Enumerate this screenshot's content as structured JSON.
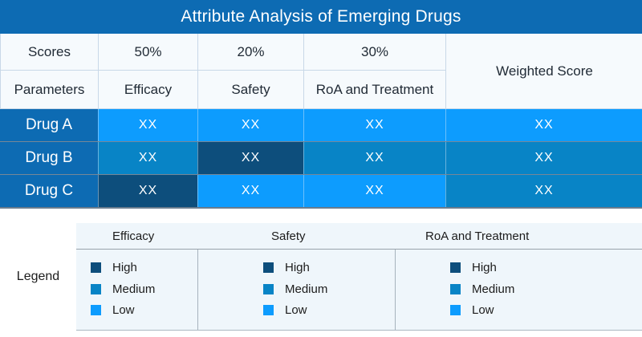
{
  "title": "Attribute Analysis of Emerging Drugs",
  "colors": {
    "brand": "#0D6BB3",
    "high": "#0D4E7C",
    "medium": "#0884C6",
    "low": "#0D9CFE",
    "header_bg": "#F6FAFD",
    "legend_bg": "#EFF6FB",
    "value_text": "#FFFFFF"
  },
  "header": {
    "scores_label": "Scores",
    "parameters_label": "Parameters",
    "weighted_label": "Weighted Score",
    "columns": [
      {
        "weight": "50%",
        "parameter": "Efficacy"
      },
      {
        "weight": "20%",
        "parameter": "Safety"
      },
      {
        "weight": "30%",
        "parameter": "RoA and Treatment"
      }
    ]
  },
  "matrix": {
    "rows": [
      {
        "label": "Drug A",
        "cells": [
          {
            "value": "XX",
            "level": "low"
          },
          {
            "value": "XX",
            "level": "low"
          },
          {
            "value": "XX",
            "level": "low"
          },
          {
            "value": "XX",
            "level": "low"
          }
        ]
      },
      {
        "label": "Drug B",
        "cells": [
          {
            "value": "XX",
            "level": "medium"
          },
          {
            "value": "XX",
            "level": "high"
          },
          {
            "value": "XX",
            "level": "medium"
          },
          {
            "value": "XX",
            "level": "medium"
          }
        ]
      },
      {
        "label": "Drug C",
        "cells": [
          {
            "value": "XX",
            "level": "high"
          },
          {
            "value": "XX",
            "level": "low"
          },
          {
            "value": "XX",
            "level": "low"
          },
          {
            "value": "XX",
            "level": "medium"
          }
        ]
      }
    ]
  },
  "legend": {
    "label": "Legend",
    "groups": [
      {
        "title": "Efficacy",
        "items": [
          {
            "label": "High",
            "level": "high"
          },
          {
            "label": "Medium",
            "level": "medium"
          },
          {
            "label": "Low",
            "level": "low"
          }
        ]
      },
      {
        "title": "Safety",
        "items": [
          {
            "label": "High",
            "level": "high"
          },
          {
            "label": "Medium",
            "level": "medium"
          },
          {
            "label": "Low",
            "level": "low"
          }
        ]
      },
      {
        "title": "RoA and Treatment",
        "items": [
          {
            "label": "High",
            "level": "high"
          },
          {
            "label": "Medium",
            "level": "medium"
          },
          {
            "label": "Low",
            "level": "low"
          }
        ]
      }
    ]
  },
  "chart_data": {
    "type": "table",
    "title": "Attribute Analysis of Emerging Drugs",
    "columns": [
      "Efficacy",
      "Safety",
      "RoA and Treatment",
      "Weighted Score"
    ],
    "column_weights": {
      "Efficacy": "50%",
      "Safety": "20%",
      "RoA and Treatment": "30%"
    },
    "rows": [
      "Drug A",
      "Drug B",
      "Drug C"
    ],
    "values": [
      [
        "XX",
        "XX",
        "XX",
        "XX"
      ],
      [
        "XX",
        "XX",
        "XX",
        "XX"
      ],
      [
        "XX",
        "XX",
        "XX",
        "XX"
      ]
    ],
    "cell_levels": [
      [
        "low",
        "low",
        "low",
        "low"
      ],
      [
        "medium",
        "high",
        "medium",
        "medium"
      ],
      [
        "high",
        "low",
        "low",
        "medium"
      ]
    ],
    "level_colors": {
      "high": "#0D4E7C",
      "medium": "#0884C6",
      "low": "#0D9CFE"
    },
    "legend_position": "bottom"
  }
}
